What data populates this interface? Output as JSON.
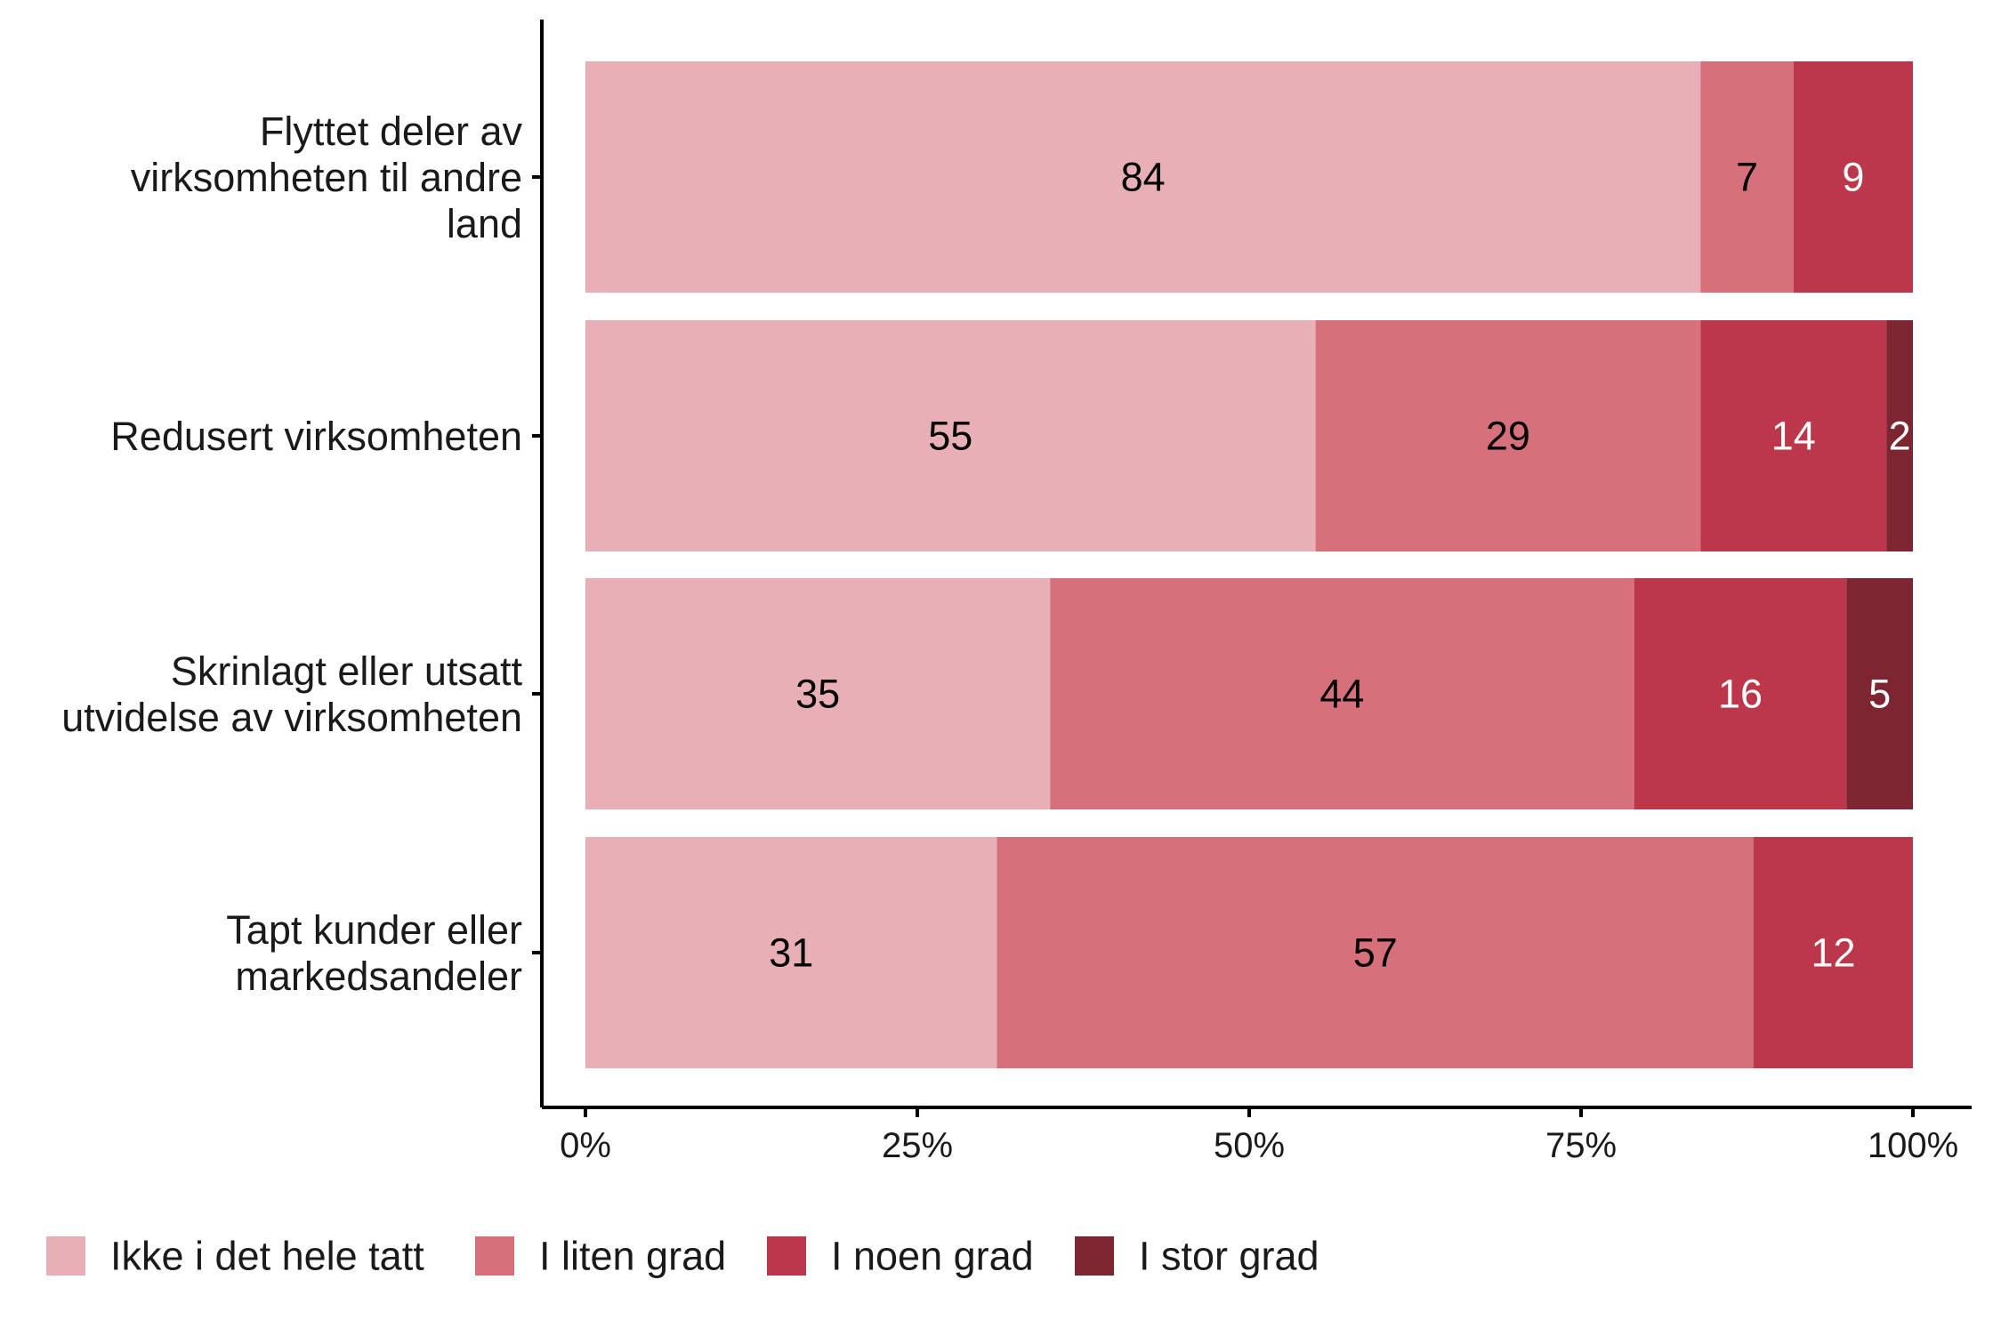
{
  "chart_data": {
    "type": "bar",
    "orientation": "horizontal",
    "stacked": true,
    "categories": [
      [
        "Flyttet deler av",
        "virksomheten til andre",
        "land"
      ],
      [
        "Redusert virksomheten"
      ],
      [
        "Skrinlagt eller utsatt",
        "utvidelse av virksomheten"
      ],
      [
        "Tapt kunder eller",
        "markedsandeler"
      ]
    ],
    "series": [
      {
        "name": "Ikke i det hele tatt",
        "color": "#e8b0b6",
        "label_color": "#000000",
        "values": [
          84,
          55,
          35,
          31
        ]
      },
      {
        "name": "I liten grad",
        "color": "#d6707b",
        "label_color": "#000000",
        "values": [
          7,
          29,
          44,
          57
        ]
      },
      {
        "name": "I noen grad",
        "color": "#bc374a",
        "label_color": "#ffffff",
        "values": [
          9,
          14,
          16,
          12
        ]
      },
      {
        "name": "I stor grad",
        "color": "#7d2531",
        "label_color": "#ffffff",
        "values": [
          0,
          2,
          5,
          0
        ]
      }
    ],
    "xlim": [
      0,
      100
    ],
    "x_ticks": [
      0,
      25,
      50,
      75,
      100
    ],
    "x_tick_labels": [
      "0%",
      "25%",
      "50%",
      "75%",
      "100%"
    ],
    "grid": false,
    "legend_position": "bottom-left"
  }
}
